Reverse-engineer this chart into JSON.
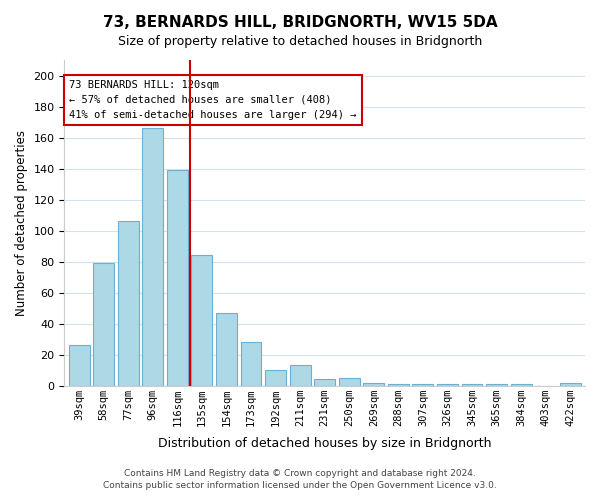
{
  "title": "73, BERNARDS HILL, BRIDGNORTH, WV15 5DA",
  "subtitle": "Size of property relative to detached houses in Bridgnorth",
  "xlabel": "Distribution of detached houses by size in Bridgnorth",
  "ylabel": "Number of detached properties",
  "bar_color": "#add8e6",
  "bar_edge_color": "#6ab0d4",
  "marker_color": "#cc0000",
  "marker_value": 120,
  "categories": [
    "39sqm",
    "58sqm",
    "77sqm",
    "96sqm",
    "116sqm",
    "135sqm",
    "154sqm",
    "173sqm",
    "192sqm",
    "211sqm",
    "231sqm",
    "250sqm",
    "269sqm",
    "288sqm",
    "307sqm",
    "326sqm",
    "345sqm",
    "365sqm",
    "384sqm",
    "403sqm",
    "422sqm"
  ],
  "values": [
    26,
    79,
    106,
    166,
    139,
    84,
    47,
    28,
    10,
    13,
    4,
    5,
    2,
    1,
    1,
    1,
    1,
    1,
    1,
    0,
    2
  ],
  "ylim": [
    0,
    210
  ],
  "yticks": [
    0,
    20,
    40,
    60,
    80,
    100,
    120,
    140,
    160,
    180,
    200
  ],
  "annotation_title": "73 BERNARDS HILL: 120sqm",
  "annotation_line1": "← 57% of detached houses are smaller (408)",
  "annotation_line2": "41% of semi-detached houses are larger (294) →",
  "footer_line1": "Contains HM Land Registry data © Crown copyright and database right 2024.",
  "footer_line2": "Contains public sector information licensed under the Open Government Licence v3.0.",
  "background_color": "#ffffff",
  "grid_color": "#d0e4f0"
}
